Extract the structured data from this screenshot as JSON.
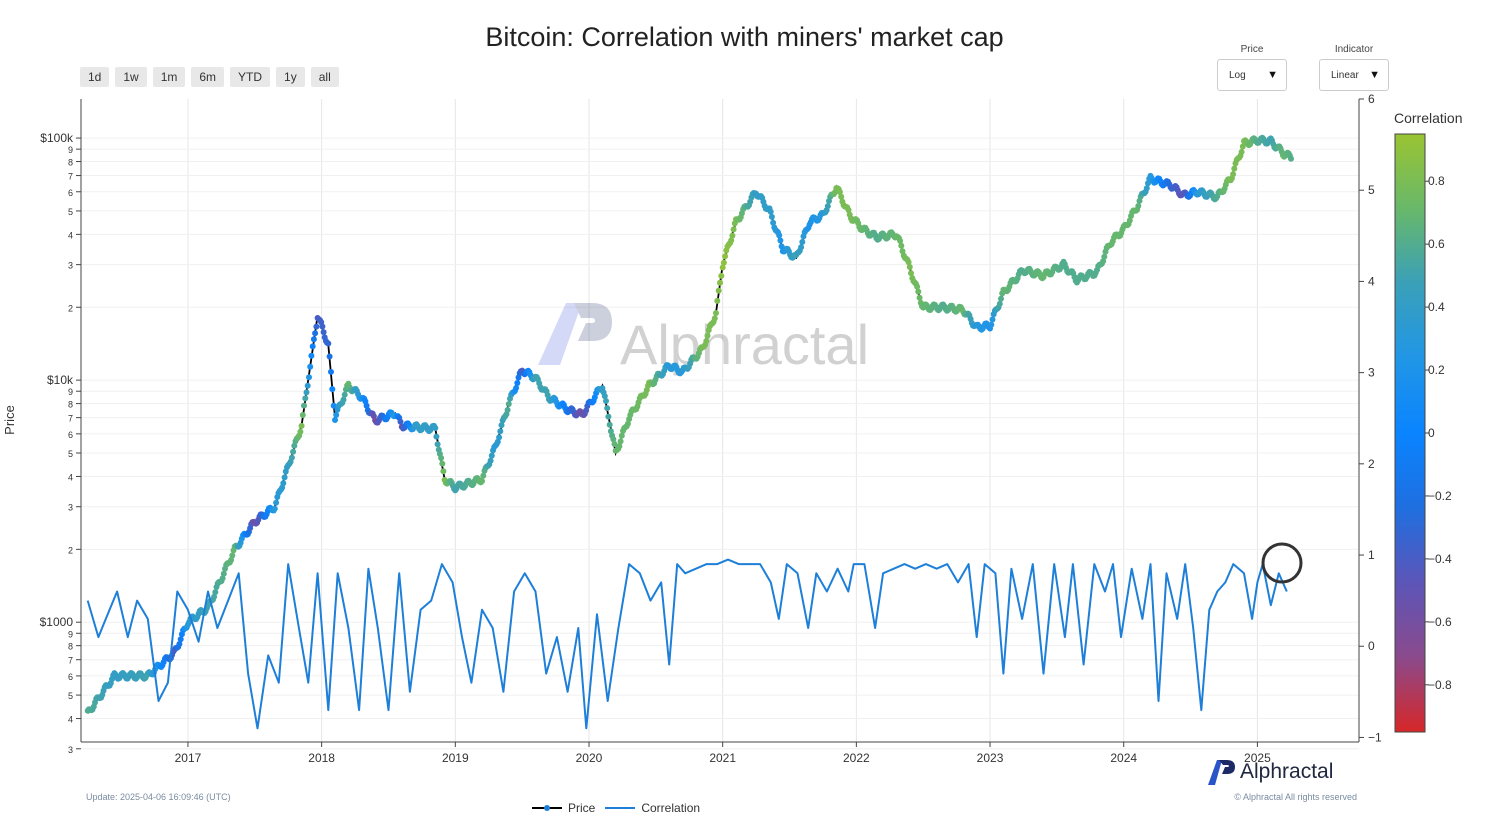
{
  "title": "Bitcoin: Correlation with miners' market cap",
  "range_buttons": [
    "1d",
    "1w",
    "1m",
    "6m",
    "YTD",
    "1y",
    "all"
  ],
  "price_scale": {
    "label": "Price",
    "value": "Log"
  },
  "indicator_scale": {
    "label": "Indicator",
    "value": "Linear"
  },
  "watermark": "Alphractal",
  "brand": "Alphractal",
  "update_text": "Update: 2025-04-06 16:09:46 (UTC)",
  "copyright": "© Alphractal All rights reserved",
  "colorbar_title": "Correlation",
  "colorbar_stops": [
    "#d62728",
    "#8b4a8c",
    "#5c55b8",
    "#1f6fe0",
    "#0a84ff",
    "#2196e6",
    "#3aa0b8",
    "#68b86a",
    "#9ac432"
  ],
  "colors": {
    "price_line": "#000000",
    "correlation_line": "#1e7fd9",
    "annotation_circle": "#333333",
    "grid": "#e6e6e6"
  },
  "chart_data": {
    "type": "line",
    "x_ticks": [
      "2017",
      "2018",
      "2019",
      "2020",
      "2021",
      "2022",
      "2023",
      "2024",
      "2025"
    ],
    "y_left": {
      "label": "Price",
      "scale": "log",
      "range": [
        320,
        145000
      ],
      "ticks": [
        {
          "v": 100000,
          "l": "$100k"
        },
        {
          "v": 90000,
          "l": "9"
        },
        {
          "v": 80000,
          "l": "8"
        },
        {
          "v": 70000,
          "l": "7"
        },
        {
          "v": 60000,
          "l": "6"
        },
        {
          "v": 50000,
          "l": "5"
        },
        {
          "v": 40000,
          "l": "4"
        },
        {
          "v": 30000,
          "l": "3"
        },
        {
          "v": 20000,
          "l": "2"
        },
        {
          "v": 10000,
          "l": "$10k"
        },
        {
          "v": 9000,
          "l": "9"
        },
        {
          "v": 8000,
          "l": "8"
        },
        {
          "v": 7000,
          "l": "7"
        },
        {
          "v": 6000,
          "l": "6"
        },
        {
          "v": 5000,
          "l": "5"
        },
        {
          "v": 4000,
          "l": "4"
        },
        {
          "v": 3000,
          "l": "3"
        },
        {
          "v": 2000,
          "l": "2"
        },
        {
          "v": 1000,
          "l": "$1000"
        },
        {
          "v": 900,
          "l": "9"
        },
        {
          "v": 800,
          "l": "8"
        },
        {
          "v": 700,
          "l": "7"
        },
        {
          "v": 600,
          "l": "6"
        },
        {
          "v": 500,
          "l": "5"
        },
        {
          "v": 400,
          "l": "4"
        },
        {
          "v": 300,
          "l": "3"
        }
      ]
    },
    "y_right": {
      "range": [
        -1.05,
        6
      ],
      "ticks": [
        6,
        5,
        4,
        3,
        2,
        1,
        0,
        -1
      ]
    },
    "colorbar": {
      "range": [
        -0.95,
        0.95
      ],
      "ticks": [
        {
          "v": 0.8,
          "l": "0.8"
        },
        {
          "v": 0.6,
          "l": "0.6"
        },
        {
          "v": 0.4,
          "l": "0.4"
        },
        {
          "v": 0.2,
          "l": "0.2"
        },
        {
          "v": 0,
          "l": "0"
        },
        {
          "v": -0.2,
          "l": "−0.2"
        },
        {
          "v": -0.4,
          "l": "−0.4"
        },
        {
          "v": -0.6,
          "l": "−0.6"
        },
        {
          "v": -0.8,
          "l": "−0.8"
        }
      ]
    },
    "legend": [
      "Price",
      "Correlation"
    ],
    "series": [
      {
        "name": "Price",
        "points": [
          [
            2016.25,
            420,
            0.6
          ],
          [
            2016.45,
            600,
            0.4
          ],
          [
            2016.7,
            600,
            0.5
          ],
          [
            2016.9,
            750,
            -0.4
          ],
          [
            2017.0,
            1000,
            0.3
          ],
          [
            2017.15,
            1150,
            0.5
          ],
          [
            2017.35,
            2000,
            0.7
          ],
          [
            2017.5,
            2600,
            -0.6
          ],
          [
            2017.65,
            3000,
            0.3
          ],
          [
            2017.75,
            4400,
            0.4
          ],
          [
            2017.85,
            6500,
            0.8
          ],
          [
            2017.97,
            18500,
            -0.4
          ],
          [
            2018.05,
            14000,
            -0.3
          ],
          [
            2018.1,
            7000,
            0.2
          ],
          [
            2018.2,
            9500,
            0.7
          ],
          [
            2018.3,
            8500,
            0.2
          ],
          [
            2018.4,
            6800,
            -0.6
          ],
          [
            2018.55,
            7300,
            0.3
          ],
          [
            2018.6,
            6500,
            -0.5
          ],
          [
            2018.7,
            6400,
            0.4
          ],
          [
            2018.85,
            6300,
            0.4
          ],
          [
            2018.92,
            3900,
            0.8
          ],
          [
            2019.0,
            3600,
            0.5
          ],
          [
            2019.2,
            3900,
            0.7
          ],
          [
            2019.3,
            5300,
            0.3
          ],
          [
            2019.4,
            8000,
            0.6
          ],
          [
            2019.5,
            11000,
            -0.4
          ],
          [
            2019.6,
            10200,
            0.5
          ],
          [
            2019.7,
            8500,
            0.5
          ],
          [
            2019.85,
            7500,
            -0.2
          ],
          [
            2019.95,
            7200,
            -0.6
          ],
          [
            2020.1,
            9500,
            0.4
          ],
          [
            2020.2,
            5000,
            0.7
          ],
          [
            2020.3,
            7000,
            0.7
          ],
          [
            2020.45,
            9500,
            0.8
          ],
          [
            2020.6,
            11500,
            0.3
          ],
          [
            2020.7,
            10800,
            0.3
          ],
          [
            2020.85,
            13500,
            0.8
          ],
          [
            2020.95,
            19000,
            0.8
          ],
          [
            2021.0,
            30000,
            0.9
          ],
          [
            2021.1,
            45000,
            0.8
          ],
          [
            2021.25,
            60000,
            0.4
          ],
          [
            2021.35,
            50000,
            0.4
          ],
          [
            2021.45,
            35000,
            0.2
          ],
          [
            2021.55,
            32000,
            0.5
          ],
          [
            2021.65,
            45000,
            0.2
          ],
          [
            2021.75,
            48000,
            0.3
          ],
          [
            2021.85,
            63000,
            0.8
          ],
          [
            2021.95,
            48000,
            0.8
          ],
          [
            2022.05,
            42000,
            0.7
          ],
          [
            2022.15,
            39000,
            0.6
          ],
          [
            2022.3,
            40000,
            0.7
          ],
          [
            2022.4,
            29000,
            0.8
          ],
          [
            2022.5,
            20000,
            0.7
          ],
          [
            2022.65,
            20000,
            0.6
          ],
          [
            2022.8,
            19500,
            0.7
          ],
          [
            2022.9,
            16500,
            0.3
          ],
          [
            2023.0,
            16800,
            0.2
          ],
          [
            2023.1,
            23000,
            0.7
          ],
          [
            2023.25,
            28500,
            0.6
          ],
          [
            2023.4,
            27000,
            0.7
          ],
          [
            2023.55,
            30000,
            0.6
          ],
          [
            2023.65,
            26000,
            0.6
          ],
          [
            2023.8,
            28000,
            0.6
          ],
          [
            2023.9,
            37000,
            0.7
          ],
          [
            2024.0,
            42000,
            0.7
          ],
          [
            2024.1,
            52000,
            0.7
          ],
          [
            2024.2,
            68000,
            0.3
          ],
          [
            2024.35,
            64000,
            -0.3
          ],
          [
            2024.45,
            58000,
            -0.5
          ],
          [
            2024.55,
            60000,
            0.3
          ],
          [
            2024.7,
            57000,
            0.6
          ],
          [
            2024.8,
            68000,
            0.8
          ],
          [
            2024.9,
            95000,
            0.8
          ],
          [
            2025.0,
            98000,
            0.6
          ],
          [
            2025.1,
            97000,
            0.5
          ],
          [
            2025.2,
            86000,
            0.7
          ],
          [
            2025.26,
            83000,
            0.6
          ]
        ]
      },
      {
        "name": "Correlation",
        "points": [
          [
            2016.25,
            0.5
          ],
          [
            2016.33,
            0.1
          ],
          [
            2016.4,
            0.35
          ],
          [
            2016.47,
            0.6
          ],
          [
            2016.55,
            0.1
          ],
          [
            2016.62,
            0.5
          ],
          [
            2016.7,
            0.3
          ],
          [
            2016.78,
            -0.6
          ],
          [
            2016.85,
            -0.4
          ],
          [
            2016.92,
            0.6
          ],
          [
            2017.0,
            0.4
          ],
          [
            2017.08,
            0.05
          ],
          [
            2017.15,
            0.6
          ],
          [
            2017.22,
            0.2
          ],
          [
            2017.3,
            0.5
          ],
          [
            2017.38,
            0.8
          ],
          [
            2017.45,
            -0.3
          ],
          [
            2017.52,
            -0.9
          ],
          [
            2017.6,
            -0.1
          ],
          [
            2017.68,
            -0.4
          ],
          [
            2017.75,
            0.9
          ],
          [
            2017.83,
            0.2
          ],
          [
            2017.9,
            -0.4
          ],
          [
            2017.97,
            0.8
          ],
          [
            2018.05,
            -0.7
          ],
          [
            2018.12,
            0.8
          ],
          [
            2018.2,
            0.2
          ],
          [
            2018.28,
            -0.7
          ],
          [
            2018.35,
            0.85
          ],
          [
            2018.42,
            0.2
          ],
          [
            2018.5,
            -0.7
          ],
          [
            2018.58,
            0.8
          ],
          [
            2018.66,
            -0.5
          ],
          [
            2018.74,
            0.4
          ],
          [
            2018.82,
            0.5
          ],
          [
            2018.9,
            0.9
          ],
          [
            2018.98,
            0.7
          ],
          [
            2019.05,
            0.1
          ],
          [
            2019.12,
            -0.4
          ],
          [
            2019.2,
            0.4
          ],
          [
            2019.28,
            0.2
          ],
          [
            2019.36,
            -0.5
          ],
          [
            2019.44,
            0.6
          ],
          [
            2019.52,
            0.8
          ],
          [
            2019.6,
            0.6
          ],
          [
            2019.68,
            -0.3
          ],
          [
            2019.76,
            0.1
          ],
          [
            2019.84,
            -0.5
          ],
          [
            2019.92,
            0.2
          ],
          [
            2019.98,
            -0.9
          ],
          [
            2020.06,
            0.35
          ],
          [
            2020.14,
            -0.6
          ],
          [
            2020.22,
            0.2
          ],
          [
            2020.3,
            0.9
          ],
          [
            2020.38,
            0.8
          ],
          [
            2020.46,
            0.5
          ],
          [
            2020.54,
            0.7
          ],
          [
            2020.6,
            -0.2
          ],
          [
            2020.66,
            0.9
          ],
          [
            2020.72,
            0.8
          ],
          [
            2020.8,
            0.85
          ],
          [
            2020.88,
            0.9
          ],
          [
            2020.96,
            0.9
          ],
          [
            2021.04,
            0.95
          ],
          [
            2021.12,
            0.9
          ],
          [
            2021.2,
            0.9
          ],
          [
            2021.28,
            0.9
          ],
          [
            2021.36,
            0.7
          ],
          [
            2021.42,
            0.3
          ],
          [
            2021.48,
            0.9
          ],
          [
            2021.56,
            0.8
          ],
          [
            2021.64,
            0.2
          ],
          [
            2021.7,
            0.8
          ],
          [
            2021.78,
            0.6
          ],
          [
            2021.86,
            0.85
          ],
          [
            2021.94,
            0.6
          ],
          [
            2021.98,
            0.9
          ],
          [
            2022.06,
            0.9
          ],
          [
            2022.14,
            0.2
          ],
          [
            2022.2,
            0.8
          ],
          [
            2022.28,
            0.85
          ],
          [
            2022.36,
            0.9
          ],
          [
            2022.44,
            0.85
          ],
          [
            2022.52,
            0.9
          ],
          [
            2022.6,
            0.85
          ],
          [
            2022.68,
            0.9
          ],
          [
            2022.76,
            0.7
          ],
          [
            2022.84,
            0.9
          ],
          [
            2022.9,
            0.1
          ],
          [
            2022.96,
            0.9
          ],
          [
            2023.04,
            0.8
          ],
          [
            2023.1,
            -0.3
          ],
          [
            2023.16,
            0.85
          ],
          [
            2023.24,
            0.3
          ],
          [
            2023.32,
            0.9
          ],
          [
            2023.4,
            -0.3
          ],
          [
            2023.48,
            0.9
          ],
          [
            2023.56,
            0.1
          ],
          [
            2023.62,
            0.9
          ],
          [
            2023.7,
            -0.2
          ],
          [
            2023.78,
            0.9
          ],
          [
            2023.86,
            0.6
          ],
          [
            2023.92,
            0.9
          ],
          [
            2023.98,
            0.1
          ],
          [
            2024.06,
            0.85
          ],
          [
            2024.14,
            0.3
          ],
          [
            2024.2,
            0.9
          ],
          [
            2024.26,
            -0.6
          ],
          [
            2024.32,
            0.8
          ],
          [
            2024.4,
            0.3
          ],
          [
            2024.46,
            0.9
          ],
          [
            2024.52,
            0.2
          ],
          [
            2024.58,
            -0.7
          ],
          [
            2024.64,
            0.4
          ],
          [
            2024.7,
            0.6
          ],
          [
            2024.76,
            0.7
          ],
          [
            2024.82,
            0.9
          ],
          [
            2024.9,
            0.8
          ],
          [
            2024.96,
            0.3
          ],
          [
            2025.0,
            0.7
          ],
          [
            2025.04,
            0.9
          ],
          [
            2025.1,
            0.45
          ],
          [
            2025.16,
            0.8
          ],
          [
            2025.22,
            0.6
          ]
        ]
      }
    ]
  }
}
